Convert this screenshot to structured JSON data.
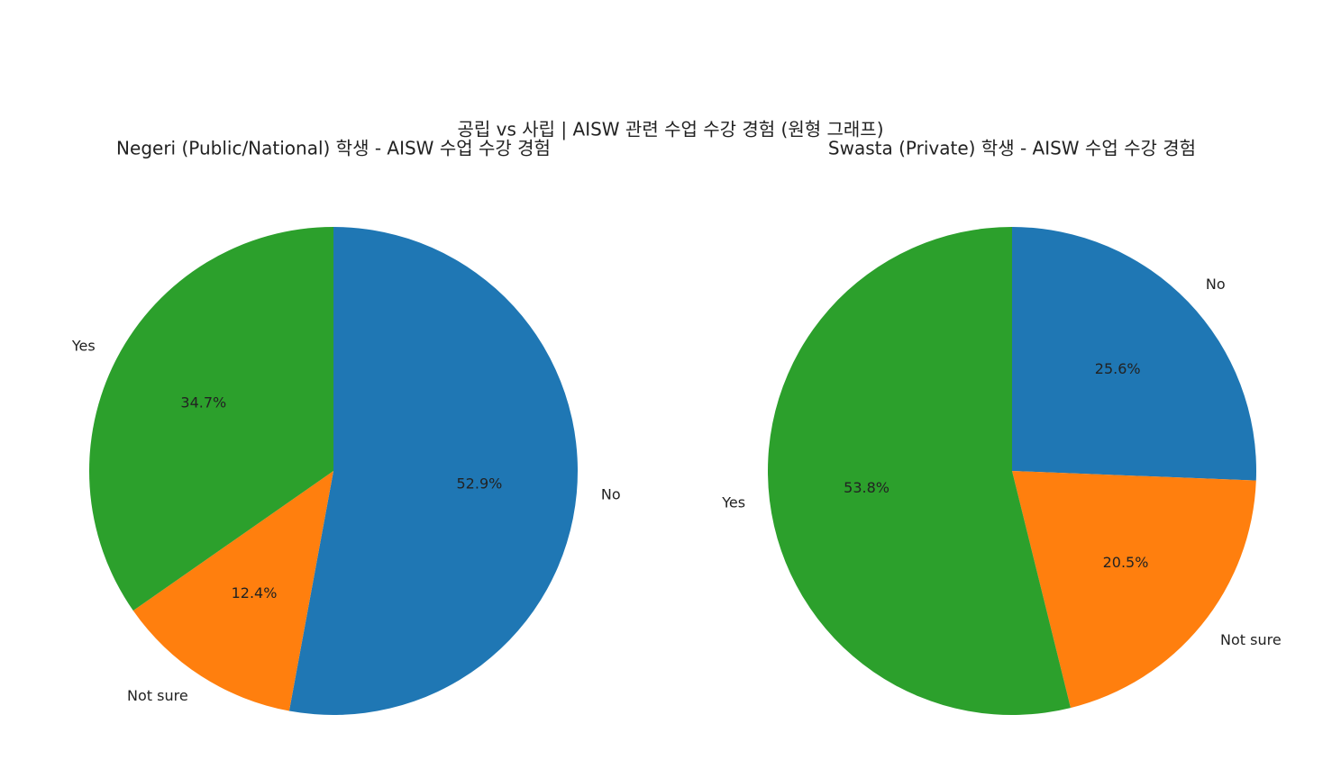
{
  "title": "공립 vs 사립 | AISW 관련 수업 수강 경험 (원형 그래프)",
  "chart_data": [
    {
      "type": "pie",
      "title": "Negeri (Public/National) 학생 - AISW 수업 수강 경험",
      "categories": [
        "No",
        "Not sure",
        "Yes"
      ],
      "values": [
        52.9,
        12.4,
        34.7
      ],
      "value_labels": [
        "52.9%",
        "12.4%",
        "34.7%"
      ],
      "colors": [
        "#1f77b4",
        "#ff7f0e",
        "#2ca02c"
      ]
    },
    {
      "type": "pie",
      "title": "Swasta (Private) 학생 - AISW 수업 수강 경험",
      "categories": [
        "No",
        "Not sure",
        "Yes"
      ],
      "values": [
        25.6,
        20.5,
        53.8
      ],
      "value_labels": [
        "25.6%",
        "20.5%",
        "53.8%"
      ],
      "colors": [
        "#1f77b4",
        "#ff7f0e",
        "#2ca02c"
      ]
    }
  ]
}
